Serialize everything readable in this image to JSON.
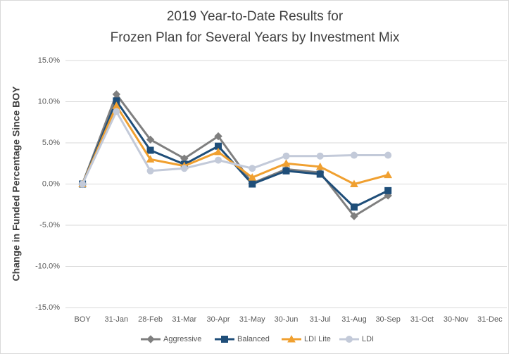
{
  "chart_data": {
    "type": "line",
    "title": [
      "2019 Year-to-Date Results for",
      "Frozen Plan for Several Years by Investment Mix"
    ],
    "y_label": "Change in Funded Percentage Since BOY",
    "categories": [
      "BOY",
      "31-Jan",
      "28-Feb",
      "31-Mar",
      "30-Apr",
      "31-May",
      "30-Jun",
      "31-Jul",
      "31-Aug",
      "30-Sep",
      "31-Oct",
      "30-Nov",
      "31-Dec"
    ],
    "series": [
      {
        "name": "Aggressive",
        "color": "#7f7f7f",
        "marker": "diamond",
        "values": [
          0,
          10.9,
          5.4,
          3.1,
          5.8,
          0.1,
          1.8,
          1.4,
          -3.9,
          -1.4,
          null,
          null,
          null
        ]
      },
      {
        "name": "Balanced",
        "color": "#1f4e79",
        "marker": "square",
        "values": [
          0,
          10.1,
          4.1,
          2.4,
          4.6,
          0.0,
          1.6,
          1.2,
          -2.8,
          -0.8,
          null,
          null,
          null
        ]
      },
      {
        "name": "LDI Lite",
        "color": "#f0a030",
        "marker": "triangle",
        "values": [
          0,
          9.5,
          3.0,
          2.2,
          3.9,
          0.8,
          2.5,
          2.1,
          0.0,
          1.1,
          null,
          null,
          null
        ]
      },
      {
        "name": "LDI",
        "color": "#c3cad9",
        "marker": "circle",
        "values": [
          0,
          8.8,
          1.6,
          1.9,
          2.9,
          1.9,
          3.4,
          3.4,
          3.5,
          3.5,
          null,
          null,
          null
        ]
      }
    ],
    "ylim": [
      -15,
      15
    ],
    "yticks": [
      {
        "value": -15,
        "label": "-15.0%"
      },
      {
        "value": -10,
        "label": "-10.0%"
      },
      {
        "value": -5,
        "label": "-5.0%"
      },
      {
        "value": 0,
        "label": "0.0%"
      },
      {
        "value": 5,
        "label": "5.0%"
      },
      {
        "value": 10,
        "label": "10.0%"
      },
      {
        "value": 15,
        "label": "15.0%"
      }
    ],
    "grid": true,
    "legend": "bottom"
  }
}
